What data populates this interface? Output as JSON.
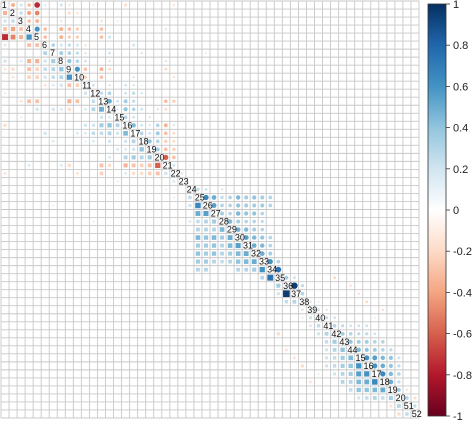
{
  "chart_data": {
    "type": "heatmap",
    "subtype": "correlation-matrix",
    "title": "",
    "xlabel": "",
    "ylabel": "",
    "n": 52,
    "labels": [
      "1",
      "2",
      "3",
      "4",
      "5",
      "6",
      "7",
      "8",
      "9",
      "10",
      "11",
      "12",
      "13",
      "14",
      "15",
      "16",
      "17",
      "18",
      "19",
      "20",
      "21",
      "22",
      "23",
      "24",
      "25",
      "26",
      "27",
      "28",
      "29",
      "30",
      "31",
      "32",
      "33",
      "34",
      "35",
      "36",
      "37",
      "38",
      "39",
      "40",
      "41",
      "42",
      "43",
      "44",
      "15",
      "16",
      "17",
      "18",
      "19",
      "20",
      "51",
      "52"
    ],
    "grid": true,
    "legend_position": "right",
    "colorbar": {
      "range": [
        -1,
        1
      ],
      "ticks": [
        "1",
        "0.8",
        "0.6",
        "0.4",
        "0.2",
        "0",
        "-0.2",
        "-0.4",
        "-0.6",
        "-0.8",
        "-1"
      ],
      "colors": {
        "negative": "#67001f",
        "mid_negative": "#d6604d",
        "zero": "#ffffff",
        "mid_positive": "#4393c3",
        "positive": "#053061"
      }
    },
    "cells": [
      [
        1,
        2,
        -0.35
      ],
      [
        1,
        3,
        0.2
      ],
      [
        1,
        4,
        -0.3
      ],
      [
        1,
        5,
        -0.75
      ],
      [
        1,
        6,
        0.15
      ],
      [
        1,
        8,
        0.2
      ],
      [
        1,
        9,
        -0.15
      ],
      [
        1,
        12,
        0.1
      ],
      [
        1,
        16,
        -0.2
      ],
      [
        1,
        22,
        -0.15
      ],
      [
        2,
        3,
        0.25
      ],
      [
        2,
        4,
        -0.4
      ],
      [
        2,
        5,
        -0.5
      ],
      [
        2,
        9,
        -0.2
      ],
      [
        2,
        10,
        -0.15
      ],
      [
        3,
        4,
        -0.3
      ],
      [
        3,
        5,
        -0.35
      ],
      [
        3,
        8,
        0.15
      ],
      [
        3,
        13,
        -0.15
      ],
      [
        3,
        15,
        0.1
      ],
      [
        4,
        5,
        0.6
      ],
      [
        4,
        6,
        -0.3
      ],
      [
        4,
        8,
        -0.35
      ],
      [
        4,
        9,
        -0.3
      ],
      [
        4,
        10,
        -0.25
      ],
      [
        4,
        13,
        -0.3
      ],
      [
        4,
        21,
        0.15
      ],
      [
        5,
        6,
        -0.3
      ],
      [
        5,
        8,
        -0.35
      ],
      [
        5,
        9,
        -0.25
      ],
      [
        5,
        10,
        -0.25
      ],
      [
        5,
        13,
        -0.3
      ],
      [
        5,
        14,
        0.2
      ],
      [
        6,
        7,
        0.3
      ],
      [
        6,
        8,
        0.2
      ],
      [
        6,
        9,
        0.25
      ],
      [
        6,
        10,
        0.2
      ],
      [
        6,
        11,
        -0.15
      ],
      [
        6,
        17,
        0.2
      ],
      [
        7,
        8,
        0.35
      ],
      [
        7,
        9,
        0.3
      ],
      [
        7,
        10,
        0.25
      ],
      [
        7,
        11,
        0.15
      ],
      [
        7,
        14,
        0.2
      ],
      [
        7,
        18,
        0.15
      ],
      [
        7,
        26,
        0.1
      ],
      [
        8,
        9,
        0.4
      ],
      [
        8,
        10,
        0.3
      ],
      [
        8,
        11,
        0.2
      ],
      [
        8,
        14,
        0.15
      ],
      [
        8,
        21,
        0.15
      ],
      [
        9,
        10,
        0.6
      ],
      [
        9,
        11,
        -0.3
      ],
      [
        9,
        13,
        -0.35
      ],
      [
        9,
        14,
        -0.2
      ],
      [
        9,
        21,
        -0.2
      ],
      [
        10,
        11,
        -0.25
      ],
      [
        10,
        13,
        -0.3
      ],
      [
        10,
        17,
        0.15
      ],
      [
        10,
        22,
        -0.15
      ],
      [
        11,
        12,
        0.2
      ],
      [
        11,
        14,
        0.15
      ],
      [
        11,
        16,
        0.2
      ],
      [
        11,
        17,
        0.15
      ],
      [
        11,
        18,
        0.1
      ],
      [
        12,
        13,
        0.25
      ],
      [
        12,
        14,
        0.3
      ],
      [
        12,
        16,
        0.2
      ],
      [
        12,
        17,
        0.25
      ],
      [
        12,
        18,
        0.15
      ],
      [
        12,
        28,
        0.1
      ],
      [
        13,
        14,
        0.5
      ],
      [
        13,
        15,
        0.2
      ],
      [
        13,
        16,
        0.35
      ],
      [
        13,
        17,
        0.25
      ],
      [
        13,
        21,
        -0.3
      ],
      [
        13,
        22,
        -0.25
      ],
      [
        14,
        15,
        0.15
      ],
      [
        14,
        16,
        0.4
      ],
      [
        14,
        17,
        0.3
      ],
      [
        14,
        18,
        0.2
      ],
      [
        14,
        20,
        0.15
      ],
      [
        14,
        21,
        -0.2
      ],
      [
        15,
        16,
        0.3
      ],
      [
        15,
        17,
        0.2
      ],
      [
        15,
        19,
        0.15
      ],
      [
        15,
        23,
        0.1
      ],
      [
        16,
        17,
        0.45
      ],
      [
        16,
        18,
        0.2
      ],
      [
        16,
        19,
        0.15
      ],
      [
        16,
        20,
        0.3
      ],
      [
        16,
        21,
        -0.35
      ],
      [
        16,
        22,
        0.15
      ],
      [
        17,
        18,
        0.3
      ],
      [
        17,
        19,
        0.2
      ],
      [
        17,
        20,
        0.35
      ],
      [
        17,
        21,
        -0.3
      ],
      [
        17,
        22,
        -0.2
      ],
      [
        18,
        19,
        0.4
      ],
      [
        18,
        20,
        0.3
      ],
      [
        18,
        21,
        -0.25
      ],
      [
        18,
        22,
        -0.2
      ],
      [
        19,
        20,
        0.35
      ],
      [
        19,
        21,
        -0.3
      ],
      [
        19,
        22,
        -0.25
      ],
      [
        20,
        21,
        -0.6
      ],
      [
        20,
        22,
        -0.3
      ],
      [
        21,
        22,
        0.2
      ],
      [
        21,
        24,
        0.1
      ],
      [
        22,
        23,
        0.15
      ],
      [
        22,
        25,
        0.1
      ],
      [
        24,
        25,
        0.25
      ],
      [
        24,
        26,
        0.2
      ],
      [
        24,
        28,
        0.15
      ],
      [
        25,
        26,
        0.65
      ],
      [
        25,
        27,
        0.5
      ],
      [
        25,
        28,
        0.25
      ],
      [
        25,
        29,
        0.3
      ],
      [
        25,
        30,
        0.45
      ],
      [
        25,
        31,
        0.35
      ],
      [
        25,
        32,
        0.4
      ],
      [
        25,
        33,
        0.35
      ],
      [
        25,
        34,
        0.3
      ],
      [
        26,
        27,
        0.55
      ],
      [
        26,
        28,
        0.3
      ],
      [
        26,
        29,
        0.3
      ],
      [
        26,
        30,
        0.4
      ],
      [
        26,
        31,
        0.35
      ],
      [
        26,
        32,
        0.35
      ],
      [
        26,
        33,
        0.35
      ],
      [
        26,
        34,
        0.3
      ],
      [
        27,
        28,
        0.35
      ],
      [
        27,
        29,
        0.3
      ],
      [
        27,
        30,
        0.45
      ],
      [
        27,
        31,
        0.4
      ],
      [
        27,
        32,
        0.4
      ],
      [
        27,
        33,
        0.3
      ],
      [
        28,
        29,
        0.45
      ],
      [
        28,
        30,
        0.35
      ],
      [
        28,
        31,
        0.3
      ],
      [
        28,
        32,
        0.3
      ],
      [
        28,
        33,
        0.25
      ],
      [
        29,
        30,
        0.5
      ],
      [
        29,
        31,
        0.45
      ],
      [
        29,
        32,
        0.35
      ],
      [
        29,
        33,
        0.3
      ],
      [
        30,
        31,
        0.55
      ],
      [
        30,
        32,
        0.45
      ],
      [
        30,
        33,
        0.4
      ],
      [
        30,
        34,
        0.3
      ],
      [
        31,
        32,
        0.5
      ],
      [
        31,
        33,
        0.45
      ],
      [
        31,
        34,
        0.3
      ],
      [
        32,
        33,
        0.5
      ],
      [
        32,
        34,
        0.35
      ],
      [
        33,
        34,
        0.6
      ],
      [
        33,
        35,
        0.3
      ],
      [
        34,
        35,
        0.75
      ],
      [
        35,
        36,
        0.35
      ],
      [
        35,
        37,
        0.2
      ],
      [
        35,
        42,
        -0.2
      ],
      [
        36,
        37,
        0.95
      ],
      [
        36,
        38,
        0.25
      ],
      [
        36,
        44,
        -0.15
      ],
      [
        37,
        38,
        0.3
      ],
      [
        37,
        45,
        -0.15
      ],
      [
        38,
        39,
        0.15
      ],
      [
        38,
        40,
        0.1
      ],
      [
        38,
        46,
        -0.2
      ],
      [
        39,
        40,
        0.2
      ],
      [
        39,
        41,
        0.15
      ],
      [
        39,
        48,
        -0.15
      ],
      [
        40,
        41,
        0.25
      ],
      [
        40,
        42,
        0.2
      ],
      [
        40,
        47,
        -0.1
      ],
      [
        41,
        42,
        0.3
      ],
      [
        41,
        43,
        0.25
      ],
      [
        41,
        44,
        0.2
      ],
      [
        41,
        45,
        0.2
      ],
      [
        41,
        46,
        0.2
      ],
      [
        42,
        43,
        0.35
      ],
      [
        42,
        44,
        0.3
      ],
      [
        42,
        45,
        0.25
      ],
      [
        42,
        46,
        0.25
      ],
      [
        42,
        47,
        0.2
      ],
      [
        43,
        44,
        0.4
      ],
      [
        43,
        45,
        0.35
      ],
      [
        43,
        46,
        0.35
      ],
      [
        43,
        47,
        0.3
      ],
      [
        43,
        48,
        0.3
      ],
      [
        44,
        45,
        0.45
      ],
      [
        44,
        46,
        0.4
      ],
      [
        44,
        47,
        0.35
      ],
      [
        44,
        48,
        0.3
      ],
      [
        44,
        49,
        0.25
      ],
      [
        45,
        46,
        0.6
      ],
      [
        45,
        47,
        0.55
      ],
      [
        45,
        48,
        0.45
      ],
      [
        45,
        49,
        0.4
      ],
      [
        45,
        50,
        0.2
      ],
      [
        46,
        47,
        0.6
      ],
      [
        46,
        48,
        0.5
      ],
      [
        46,
        49,
        0.4
      ],
      [
        46,
        50,
        0.25
      ],
      [
        47,
        48,
        0.65
      ],
      [
        47,
        49,
        0.45
      ],
      [
        47,
        50,
        0.3
      ],
      [
        48,
        49,
        0.5
      ],
      [
        48,
        50,
        0.25
      ],
      [
        49,
        50,
        0.35
      ],
      [
        49,
        51,
        -0.15
      ],
      [
        50,
        51,
        0.3
      ],
      [
        50,
        52,
        -0.2
      ],
      [
        51,
        52,
        0.25
      ]
    ]
  }
}
